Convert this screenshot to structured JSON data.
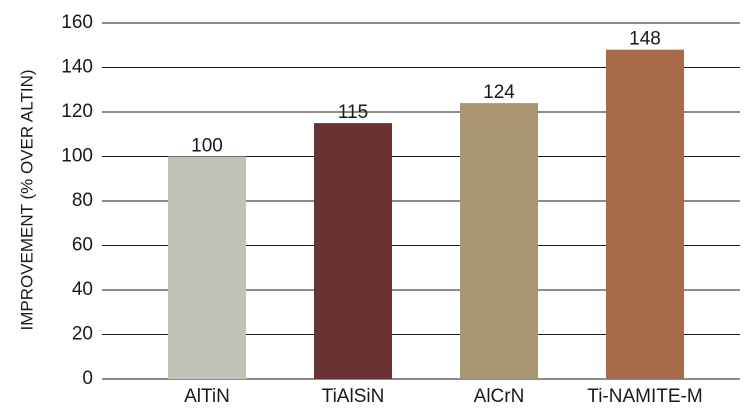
{
  "chart_data": {
    "type": "bar",
    "title": "",
    "xlabel": "",
    "ylabel": "IMPROVEMENT (% OVER ALTIN)",
    "ylim": [
      0,
      160
    ],
    "yticks": [
      0,
      20,
      40,
      60,
      80,
      100,
      120,
      140,
      160
    ],
    "grid": true,
    "legend": "none",
    "categories": [
      "AlTiN",
      "TiAlSiN",
      "AlCrN",
      "Ti-NAMITE-M"
    ],
    "values": [
      100,
      115,
      124,
      148
    ],
    "data_labels": [
      "100",
      "115",
      "124",
      "148"
    ],
    "colors": [
      "#c2c2b8",
      "#6a3233",
      "#a89673",
      "#a86b4a"
    ]
  }
}
